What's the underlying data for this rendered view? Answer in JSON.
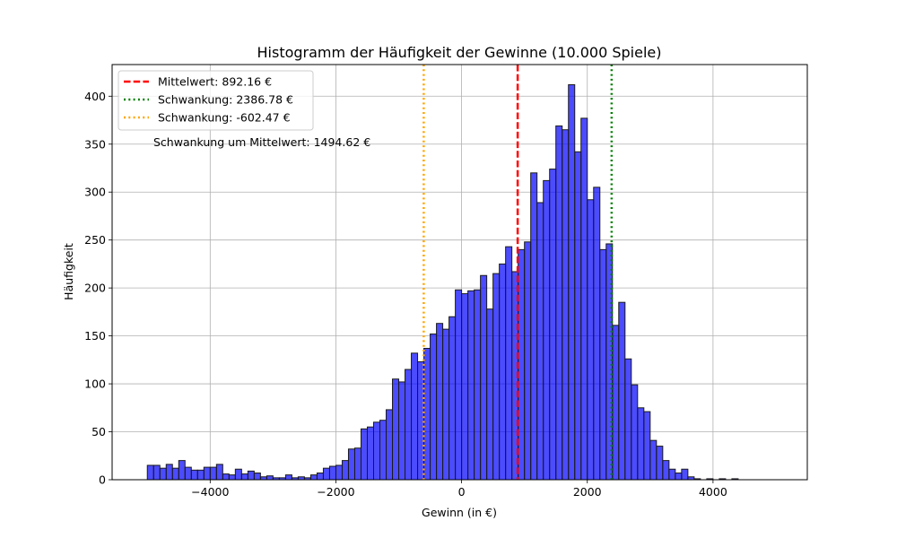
{
  "chart_data": {
    "type": "bar",
    "title": "Histogramm der Häufigkeit der Gewinne (10.000 Spiele)",
    "xlabel": "Gewinn (in €)",
    "ylabel": "Häufigkeit",
    "xlim": [
      -5560,
      5500
    ],
    "ylim": [
      0,
      433
    ],
    "xticks": [
      -4000,
      -2000,
      0,
      2000,
      4000
    ],
    "xtick_labels": [
      "−4000",
      "−2000",
      "0",
      "2000",
      "4000"
    ],
    "yticks": [
      0,
      50,
      100,
      150,
      200,
      250,
      300,
      350,
      400
    ],
    "ytick_labels": [
      "0",
      "50",
      "100",
      "150",
      "200",
      "250",
      "300",
      "350",
      "400"
    ],
    "grid": true,
    "bin_start": -5000,
    "bin_width": 100,
    "values": [
      15,
      15,
      12,
      16,
      12,
      20,
      13,
      10,
      10,
      13,
      13,
      16,
      6,
      5,
      11,
      6,
      9,
      7,
      3,
      4,
      2,
      2,
      5,
      2,
      3,
      2,
      5,
      7,
      12,
      14,
      15,
      20,
      32,
      33,
      53,
      55,
      60,
      62,
      73,
      105,
      102,
      115,
      132,
      123,
      137,
      152,
      163,
      157,
      170,
      198,
      194,
      197,
      198,
      213,
      178,
      215,
      225,
      243,
      217,
      240,
      248,
      320,
      289,
      312,
      324,
      369,
      365,
      412,
      342,
      377,
      292,
      305,
      240,
      246,
      161,
      185,
      126,
      99,
      75,
      71,
      41,
      35,
      20,
      11,
      7,
      11,
      3,
      1,
      0,
      1,
      0,
      1,
      0,
      1,
      0,
      0,
      0,
      0,
      0,
      0
    ],
    "bar_color": "#0000ff",
    "bar_edge_color": "#1a1a1a",
    "lines": [
      {
        "name": "Mittelwert: 892.16 €",
        "x": 892.16,
        "color": "#ff0000",
        "style": "dashed"
      },
      {
        "name": "Schwankung: 2386.78 €",
        "x": 2386.78,
        "color": "#008000",
        "style": "dotted"
      },
      {
        "name": "Schwankung: -602.47 €",
        "x": -602.47,
        "color": "#ffa500",
        "style": "dotted"
      }
    ],
    "legend_position": "top-left",
    "annotation": "Schwankung um Mittelwert: 1494.62 €"
  }
}
